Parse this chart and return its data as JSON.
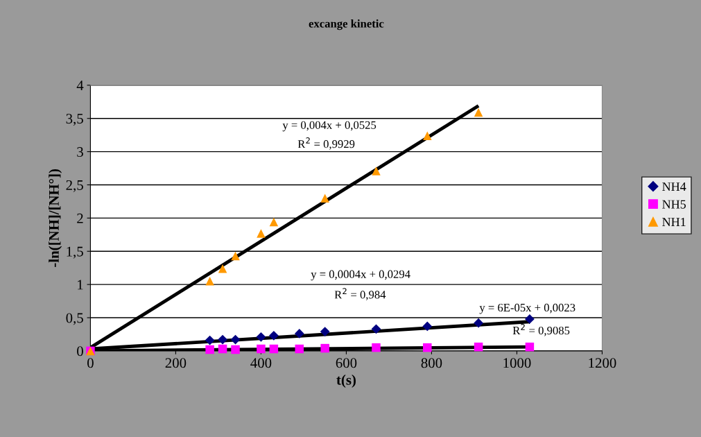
{
  "chart_data": {
    "type": "scatter",
    "title": "excange kinetic",
    "xlabel": "t(s)",
    "ylabel": "-ln([NH]/[NH°])",
    "x": [
      0,
      280,
      310,
      340,
      400,
      430,
      490,
      550,
      670,
      790,
      910,
      1030
    ],
    "series": [
      {
        "name": "NH4",
        "color": "#000080",
        "marker": "diamond",
        "values": [
          null,
          0.16,
          0.17,
          0.17,
          0.21,
          0.23,
          0.26,
          0.29,
          0.33,
          0.37,
          0.42,
          0.48
        ]
      },
      {
        "name": "NH5",
        "color": "#ff00ff",
        "marker": "square",
        "values": [
          0,
          0.02,
          0.03,
          0.02,
          0.03,
          0.03,
          0.03,
          0.04,
          0.05,
          0.05,
          0.06,
          0.06
        ]
      },
      {
        "name": "NH1",
        "color": "#ff9900",
        "marker": "triangle",
        "values": [
          0,
          1.05,
          1.24,
          1.43,
          1.77,
          1.94,
          null,
          2.3,
          2.71,
          3.24,
          3.59,
          null
        ]
      },
      {
        "type": "line",
        "color": "#000000",
        "marker": "none",
        "x": [
          0,
          910
        ],
        "values": [
          0.05,
          3.69
        ]
      },
      {
        "type": "line",
        "color": "#000000",
        "marker": "none",
        "x": [
          0,
          1030
        ],
        "values": [
          0.03,
          0.44
        ]
      },
      {
        "type": "line",
        "color": "#000000",
        "marker": "none",
        "x": [
          0,
          1030
        ],
        "values": [
          0.0,
          0.06
        ]
      }
    ],
    "annotations": [
      "y = 0,004x + 0,0525",
      "R$^{2}$ = 0,9929",
      "y = 0,0004x + 0,0294",
      "R$^{2}$ = 0,984",
      "y = 6E-05x + 0,0023",
      "R$^{2}$ = 0,9085"
    ],
    "xlim": [
      0,
      1200
    ],
    "xticks": [
      0,
      200,
      400,
      600,
      800,
      1000,
      1200
    ],
    "ylim": [
      0,
      4
    ],
    "yticks": [
      0,
      {
        "value": 0.5,
        "label": "0,5"
      },
      1,
      {
        "value": 1.5,
        "label": "1,5"
      },
      2,
      {
        "value": 2.5,
        "label": "2,5"
      },
      3,
      {
        "value": 3.5,
        "label": "3,5"
      },
      4
    ],
    "grid": "y",
    "legend": "right"
  }
}
